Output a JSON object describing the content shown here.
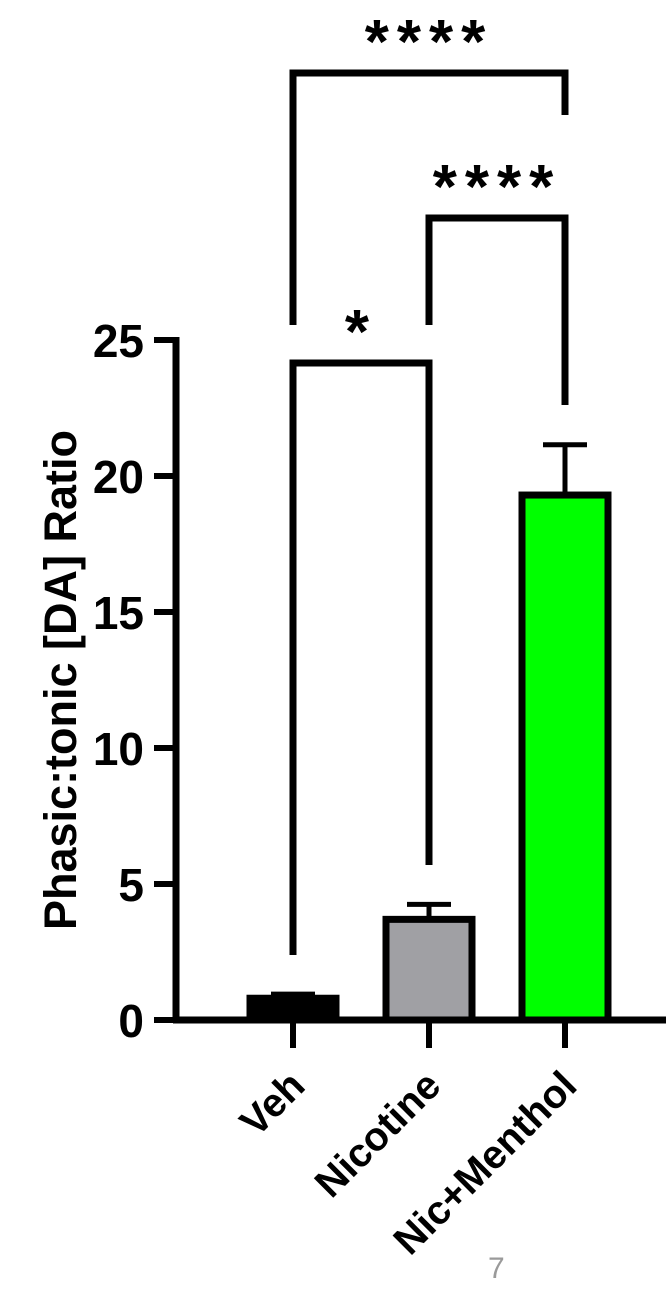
{
  "page_number": "7",
  "chart_data": {
    "type": "bar",
    "categories": [
      "Veh",
      "Nicotine",
      "Nic+Menthol"
    ],
    "values": [
      0.8,
      3.7,
      19.3
    ],
    "errors": [
      0.15,
      0.55,
      1.85
    ],
    "colors": [
      "#000000",
      "#a0a0a4",
      "#00ff00"
    ],
    "ylabel": "Phasic:tonic [DA] Ratio",
    "xlabel": "",
    "title": "",
    "ylim": [
      0,
      25
    ],
    "yticks": [
      0,
      5,
      10,
      15,
      20,
      25
    ],
    "grid": false,
    "significance": [
      {
        "from": 0,
        "to": 1,
        "label": "*"
      },
      {
        "from": 1,
        "to": 2,
        "label": "****"
      },
      {
        "from": 0,
        "to": 2,
        "label": "****"
      }
    ]
  }
}
